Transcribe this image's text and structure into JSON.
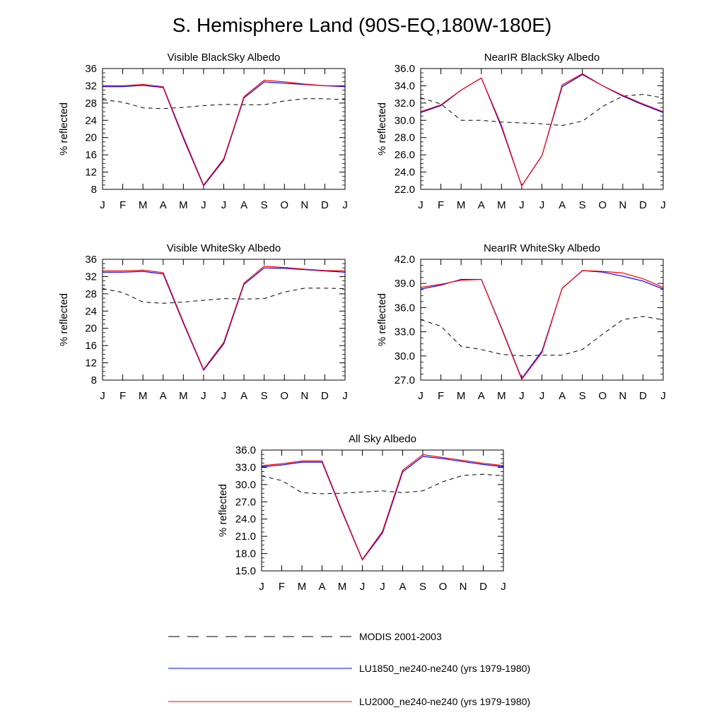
{
  "title": "S. Hemisphere Land (90S-EQ,180W-180E)",
  "months": [
    "J",
    "F",
    "M",
    "A",
    "M",
    "J",
    "J",
    "A",
    "S",
    "O",
    "N",
    "D",
    "J"
  ],
  "colors": {
    "modis": "#000000",
    "lu1850": "#0000ff",
    "lu2000": "#ff0000"
  },
  "legend": [
    {
      "key": "modis",
      "label": "MODIS 2001-2003",
      "style": "dashed"
    },
    {
      "key": "lu1850",
      "label": "LU1850_ne240-ne240 (yrs 1979-1980)",
      "style": "solid"
    },
    {
      "key": "lu2000",
      "label": "LU2000_ne240-ne240 (yrs 1979-1980)",
      "style": "solid"
    }
  ],
  "chart_data": [
    {
      "type": "line",
      "title": "Visible BlackSky Albedo",
      "ylabel": "% reflected",
      "ylim": [
        8,
        36
      ],
      "yticks": [
        "8",
        "12",
        "16",
        "20",
        "24",
        "28",
        "32",
        "36"
      ],
      "categories": [
        "J",
        "F",
        "M",
        "A",
        "M",
        "J",
        "J",
        "A",
        "S",
        "O",
        "N",
        "D",
        "J"
      ],
      "series": [
        {
          "name": "MODIS 2001-2003",
          "key": "modis",
          "values": [
            28.8,
            28.2,
            26.9,
            26.7,
            27.0,
            27.4,
            27.7,
            27.6,
            27.6,
            28.5,
            29.0,
            29.0,
            28.8
          ]
        },
        {
          "name": "LU1850_ne240-ne240 (yrs 1979-1980)",
          "key": "lu1850",
          "values": [
            31.8,
            31.8,
            32.1,
            31.6,
            19.8,
            8.8,
            14.8,
            29.2,
            32.9,
            32.6,
            32.3,
            32.0,
            31.8
          ]
        },
        {
          "name": "LU2000_ne240-ne240 (yrs 1979-1980)",
          "key": "lu2000",
          "values": [
            32.0,
            32.0,
            32.3,
            31.8,
            20.2,
            9.0,
            15.1,
            29.5,
            33.3,
            32.9,
            32.4,
            32.0,
            32.0
          ]
        }
      ]
    },
    {
      "type": "line",
      "title": "NearIR BlackSky Albedo",
      "ylabel": "% reflected",
      "ylim": [
        22,
        36
      ],
      "yticks": [
        "22.0",
        "24.0",
        "26.0",
        "28.0",
        "30.0",
        "32.0",
        "34.0",
        "36.0"
      ],
      "categories": [
        "J",
        "F",
        "M",
        "A",
        "M",
        "J",
        "J",
        "A",
        "S",
        "O",
        "N",
        "D",
        "J"
      ],
      "series": [
        {
          "name": "MODIS 2001-2003",
          "key": "modis",
          "values": [
            32.6,
            31.9,
            30.0,
            30.0,
            29.8,
            29.7,
            29.6,
            29.4,
            29.9,
            31.6,
            32.8,
            33.0,
            32.6
          ]
        },
        {
          "name": "LU1850_ne240-ne240 (yrs 1979-1980)",
          "key": "lu1850",
          "values": [
            30.9,
            31.7,
            33.5,
            34.9,
            29.2,
            22.4,
            25.9,
            33.9,
            35.3,
            34.0,
            32.8,
            31.8,
            30.9
          ]
        },
        {
          "name": "LU2000_ne240-ne240 (yrs 1979-1980)",
          "key": "lu2000",
          "values": [
            31.0,
            31.8,
            33.5,
            34.9,
            29.4,
            22.4,
            25.9,
            34.1,
            35.4,
            34.0,
            32.9,
            31.9,
            31.0
          ]
        }
      ]
    },
    {
      "type": "line",
      "title": "Visible WhiteSky Albedo",
      "ylabel": "% reflected",
      "ylim": [
        8,
        36
      ],
      "yticks": [
        "8",
        "12",
        "16",
        "20",
        "24",
        "28",
        "32",
        "36"
      ],
      "categories": [
        "J",
        "F",
        "M",
        "A",
        "M",
        "J",
        "J",
        "A",
        "S",
        "O",
        "N",
        "D",
        "J"
      ],
      "series": [
        {
          "name": "MODIS 2001-2003",
          "key": "modis",
          "values": [
            29.2,
            28.3,
            26.1,
            25.8,
            26.1,
            26.5,
            26.9,
            26.8,
            26.9,
            28.4,
            29.3,
            29.3,
            29.2
          ]
        },
        {
          "name": "LU1850_ne240-ne240 (yrs 1979-1980)",
          "key": "lu1850",
          "values": [
            33.0,
            33.0,
            33.2,
            32.6,
            21.2,
            10.3,
            16.4,
            30.2,
            34.0,
            33.9,
            33.6,
            33.3,
            33.0
          ]
        },
        {
          "name": "LU2000_ne240-ne240 (yrs 1979-1980)",
          "key": "lu2000",
          "values": [
            33.3,
            33.3,
            33.5,
            32.9,
            21.5,
            10.5,
            16.8,
            30.5,
            34.4,
            34.1,
            33.7,
            33.4,
            33.3
          ]
        }
      ]
    },
    {
      "type": "line",
      "title": "NearIR WhiteSky Albedo",
      "ylabel": "% reflected",
      "ylim": [
        27,
        42
      ],
      "yticks": [
        "27.0",
        "30.0",
        "33.0",
        "36.0",
        "39.0",
        "42.0"
      ],
      "categories": [
        "J",
        "F",
        "M",
        "A",
        "M",
        "J",
        "J",
        "A",
        "S",
        "O",
        "N",
        "D",
        "J"
      ],
      "series": [
        {
          "name": "MODIS 2001-2003",
          "key": "modis",
          "values": [
            34.5,
            33.7,
            31.2,
            30.8,
            30.2,
            30.0,
            30.1,
            30.1,
            30.8,
            32.7,
            34.5,
            34.9,
            34.5
          ]
        },
        {
          "name": "LU1850_ne240-ne240 (yrs 1979-1980)",
          "key": "lu1850",
          "values": [
            38.3,
            38.8,
            39.5,
            39.5,
            33.5,
            27.2,
            30.6,
            38.4,
            40.6,
            40.4,
            39.9,
            39.3,
            38.3
          ]
        },
        {
          "name": "LU2000_ne240-ne240 (yrs 1979-1980)",
          "key": "lu2000",
          "values": [
            38.5,
            38.9,
            39.4,
            39.5,
            33.4,
            27.1,
            30.4,
            38.4,
            40.6,
            40.5,
            40.3,
            39.6,
            38.5
          ]
        }
      ]
    },
    {
      "type": "line",
      "title": "All Sky Albedo",
      "ylabel": "% reflected",
      "ylim": [
        15,
        36
      ],
      "yticks": [
        "15.0",
        "18.0",
        "21.0",
        "24.0",
        "27.0",
        "30.0",
        "33.0",
        "36.0"
      ],
      "categories": [
        "J",
        "F",
        "M",
        "A",
        "M",
        "J",
        "J",
        "A",
        "S",
        "O",
        "N",
        "D",
        "J"
      ],
      "series": [
        {
          "name": "MODIS 2001-2003",
          "key": "modis",
          "values": [
            31.5,
            30.7,
            28.6,
            28.4,
            28.5,
            28.7,
            28.9,
            28.6,
            28.9,
            30.5,
            31.6,
            31.8,
            31.5
          ]
        },
        {
          "name": "LU1850_ne240-ne240 (yrs 1979-1980)",
          "key": "lu1850",
          "values": [
            33.1,
            33.4,
            33.9,
            33.9,
            25.2,
            16.9,
            21.6,
            32.2,
            34.9,
            34.5,
            34.0,
            33.5,
            33.1
          ]
        },
        {
          "name": "LU2000_ne240-ne240 (yrs 1979-1980)",
          "key": "lu2000",
          "values": [
            33.3,
            33.6,
            34.1,
            34.1,
            25.4,
            17.0,
            21.9,
            32.5,
            35.2,
            34.7,
            34.2,
            33.7,
            33.3
          ]
        }
      ]
    }
  ]
}
